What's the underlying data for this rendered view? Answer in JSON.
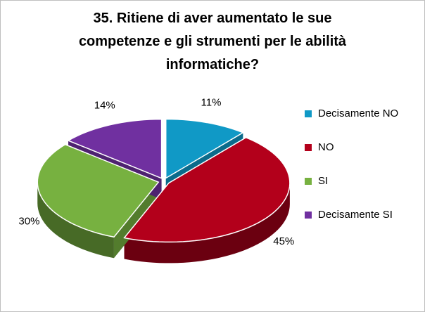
{
  "chart_data": {
    "type": "pie3d",
    "title": "35. Ritiene di aver aumentato le sue competenze e gli strumenti per le abilità informatiche?",
    "categories": [
      "Decisamente NO",
      "NO",
      "SI",
      "Decisamente SI"
    ],
    "values": [
      11,
      45,
      30,
      14
    ],
    "value_labels": [
      "11%",
      "45%",
      "30%",
      "14%"
    ],
    "colors": [
      "#1099c6",
      "#b3001b",
      "#77b140",
      "#7030a0"
    ],
    "legend": "right"
  }
}
